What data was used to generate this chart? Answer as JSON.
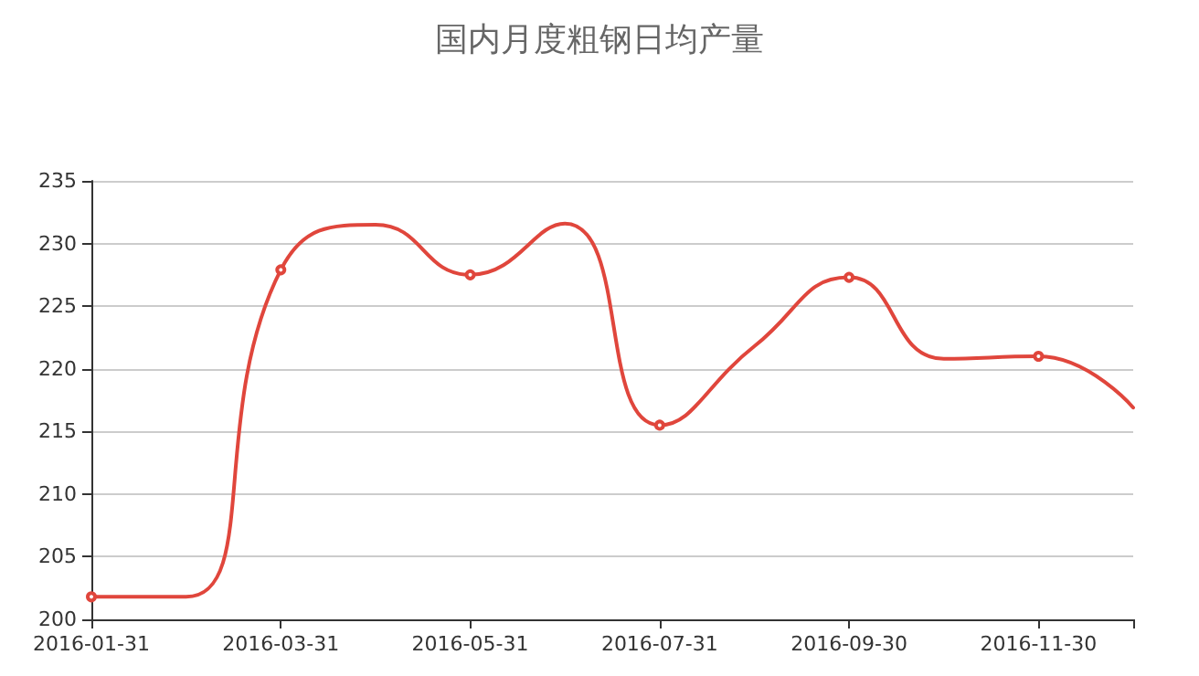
{
  "chart_data": {
    "type": "line",
    "title": "国内月度粗钢日均产量",
    "categories": [
      "2016-01-31",
      null,
      "2016-03-31",
      null,
      "2016-05-31",
      null,
      "2016-07-31",
      null,
      "2016-09-30",
      null,
      "2016-11-30",
      null
    ],
    "series": [
      {
        "color": "#e0463c",
        "values": [
          201.8,
          201.8,
          227.9,
          231.5,
          227.5,
          231.6,
          215.5,
          221.8,
          227.3,
          220.8,
          221.0,
          216.9
        ]
      }
    ],
    "ylim": [
      200,
      235
    ],
    "yticks": [
      200,
      205,
      210,
      215,
      220,
      225,
      230,
      235
    ],
    "grid": "y",
    "marker": "circle",
    "line_style": "solid"
  }
}
